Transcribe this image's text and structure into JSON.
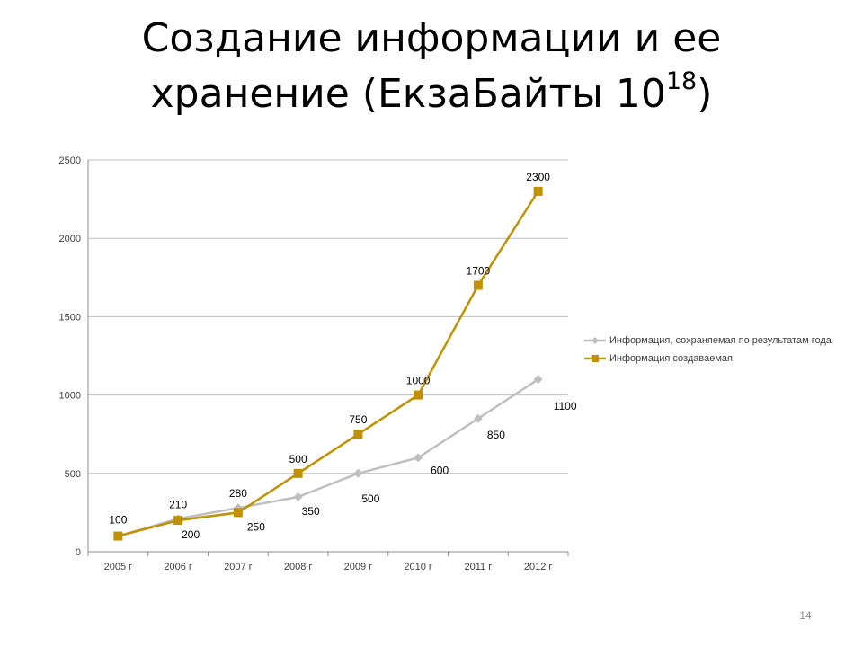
{
  "slide": {
    "title_line1": "Создание информации и ее",
    "title_line2": "хранение  (ЕкзаБайты 10",
    "title_sup": "18",
    "title_close": ")",
    "page_number": "14"
  },
  "chart_data": {
    "type": "line",
    "categories": [
      "2005 г",
      "2006 г",
      "2007 г",
      "2008 г",
      "2009 г",
      "2010 г",
      "2011 г",
      "2012 г"
    ],
    "ylim": [
      0,
      2500
    ],
    "yticks": [
      0,
      500,
      1000,
      1500,
      2000,
      2500
    ],
    "grid": true,
    "legend": "right",
    "series": [
      {
        "name": "Информация, сохраняемая по результатам года",
        "values": [
          100,
          210,
          280,
          350,
          500,
          600,
          850,
          1100
        ],
        "labels": [
          "",
          "210",
          "280",
          "350",
          "500",
          "600",
          "850",
          "1100"
        ],
        "color": "#bfbfbf",
        "marker": "diamond"
      },
      {
        "name": "Информация создаваемая",
        "values": [
          100,
          200,
          250,
          500,
          750,
          1000,
          1700,
          2300
        ],
        "labels": [
          "100",
          "200",
          "250",
          "500",
          "750",
          "1000",
          "1700",
          "2300"
        ],
        "color": "#c09100",
        "marker": "square"
      }
    ]
  }
}
